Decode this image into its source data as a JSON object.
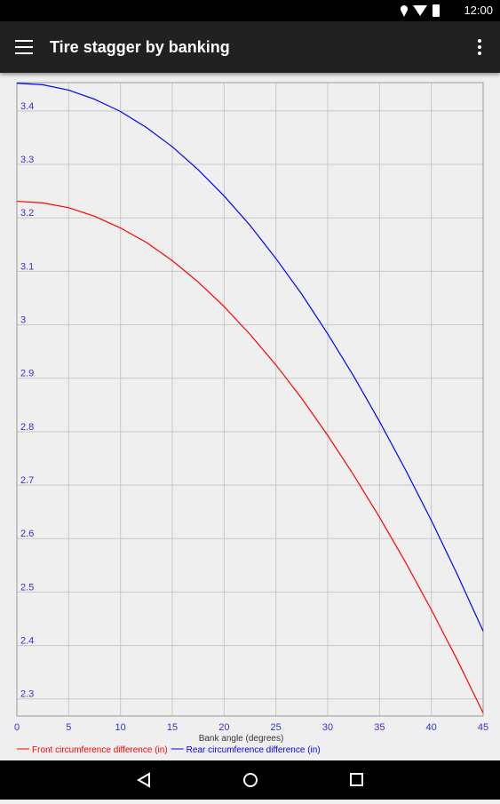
{
  "status_bar": {
    "time": "12:00"
  },
  "app_bar": {
    "title": "Tire stagger by banking"
  },
  "chart_data": {
    "type": "line",
    "x_label": "Bank angle (degrees)",
    "x": [
      0,
      2.5,
      5,
      7.5,
      10,
      12.5,
      15,
      17.5,
      20,
      22.5,
      25,
      27.5,
      30,
      32.5,
      35,
      37.5,
      40,
      42.5,
      45
    ],
    "series": [
      {
        "name": "Front circumference difference (in)",
        "color": "#ff0000",
        "values": [
          3.231,
          3.228,
          3.219,
          3.203,
          3.181,
          3.154,
          3.12,
          3.08,
          3.034,
          2.982,
          2.925,
          2.862,
          2.793,
          2.719,
          2.64,
          2.556,
          2.467,
          2.373,
          2.274
        ]
      },
      {
        "name": "Rear circumference difference (in)",
        "color": "#0000ff",
        "values": [
          3.452,
          3.449,
          3.439,
          3.422,
          3.399,
          3.369,
          3.333,
          3.29,
          3.241,
          3.186,
          3.124,
          3.057,
          2.983,
          2.904,
          2.819,
          2.729,
          2.634,
          2.533,
          2.427
        ]
      }
    ],
    "xlim": [
      0,
      45
    ],
    "xticks": [
      0,
      5,
      10,
      15,
      20,
      25,
      30,
      35,
      40,
      45
    ],
    "ylim": [
      2.268,
      3.453
    ],
    "yticks": [
      2.3,
      2.4,
      2.5,
      2.6,
      2.7,
      2.8,
      2.9,
      3,
      3.1,
      3.2,
      3.3,
      3.4
    ],
    "grid": true,
    "tick_color": "#3333cc"
  }
}
